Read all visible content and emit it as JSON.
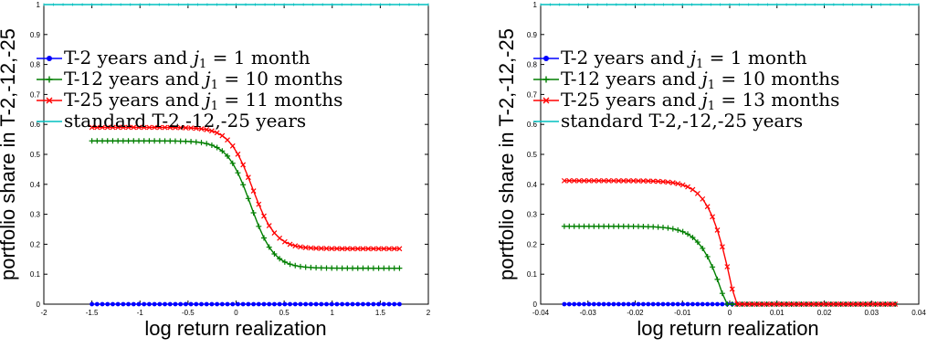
{
  "colors": {
    "blue": "#0000ff",
    "green": "#007f00",
    "red": "#ff0000",
    "cyan": "#00bfbf",
    "axis": "#000000"
  },
  "chart_data": [
    {
      "type": "line",
      "title": "",
      "xlabel": "log return realization",
      "ylabel": "portfolio share in T-2,-12,-25",
      "xlim": [
        -2,
        2
      ],
      "ylim": [
        0,
        1
      ],
      "xticks": [
        "-2",
        "-1.5",
        "-1",
        "-0.5",
        "0",
        "0.5",
        "1",
        "1.5",
        "2"
      ],
      "yticks": [
        "0",
        "0.1",
        "0.2",
        "0.3",
        "0.4",
        "0.5",
        "0.6",
        "0.7",
        "0.8",
        "0.9",
        "1"
      ],
      "grid": false,
      "legend_position": "top-left",
      "series": [
        {
          "name": "T-2 years and j1 = 1 month",
          "legend_prefix": "T-2 years and ",
          "legend_math": "j",
          "legend_sub": "1",
          "legend_suffix": " = 1 month",
          "color": "#0000ff",
          "marker": "dot",
          "shape": "const",
          "params": {
            "value": 0.0
          },
          "x_range": [
            -1.5,
            1.7
          ]
        },
        {
          "name": "T-12 years and j1 = 10 months",
          "legend_prefix": "T-12 years and ",
          "legend_math": "j",
          "legend_sub": "1",
          "legend_suffix": " = 10 months",
          "color": "#007f00",
          "marker": "plus",
          "shape": "sigmoid",
          "params": {
            "high": 0.545,
            "low": 0.12,
            "center": 0.15,
            "scale": 0.12
          },
          "x_range": [
            -1.5,
            1.7
          ]
        },
        {
          "name": "T-25 years and j1 = 11 months",
          "legend_prefix": "T-25 years and ",
          "legend_math": "j",
          "legend_sub": "1",
          "legend_suffix": " = 11 months",
          "color": "#ff0000",
          "marker": "x",
          "shape": "sigmoid",
          "params": {
            "high": 0.59,
            "low": 0.185,
            "center": 0.17,
            "scale": 0.12
          },
          "x_range": [
            -1.5,
            1.7
          ]
        },
        {
          "name": "standard T-2,-12,-25 years",
          "legend_prefix": "standard T-2,-12,-25 years",
          "legend_math": "",
          "legend_sub": "",
          "legend_suffix": "",
          "color": "#00bfbf",
          "marker": "none",
          "shape": "const",
          "params": {
            "value": 1.0
          },
          "x_range": [
            -2,
            2
          ]
        }
      ]
    },
    {
      "type": "line",
      "title": "",
      "xlabel": "log return realization",
      "ylabel": "portfolio share in T-2,-12,-25",
      "xlim": [
        -0.04,
        0.04
      ],
      "ylim": [
        0,
        1
      ],
      "xticks": [
        "-0.04",
        "-0.03",
        "-0.02",
        "-0.01",
        "0",
        "0.01",
        "0.02",
        "0.03",
        "0.04"
      ],
      "yticks": [
        "0",
        "0.1",
        "0.2",
        "0.3",
        "0.4",
        "0.5",
        "0.6",
        "0.7",
        "0.8",
        "0.9",
        "1"
      ],
      "grid": false,
      "legend_position": "top-left",
      "series": [
        {
          "name": "T-2 years and j1 = 1 month",
          "legend_prefix": "T-2 years and ",
          "legend_math": "j",
          "legend_sub": "1",
          "legend_suffix": " = 1 month",
          "color": "#0000ff",
          "marker": "dot",
          "shape": "const",
          "params": {
            "value": 0.0
          },
          "x_range": [
            -0.035,
            0.035
          ]
        },
        {
          "name": "T-12 years and j1 = 10 months",
          "legend_prefix": "T-12 years and ",
          "legend_math": "j",
          "legend_sub": "1",
          "legend_suffix": " = 10 months",
          "color": "#007f00",
          "marker": "plus",
          "shape": "kink",
          "params": {
            "high": 0.26,
            "zero": -0.0008,
            "k": 0.0055
          },
          "x_range": [
            -0.035,
            0.035
          ]
        },
        {
          "name": "T-25 years and j1 = 13 months",
          "legend_prefix": "T-25 years and ",
          "legend_math": "j",
          "legend_sub": "1",
          "legend_suffix": " = 13 months",
          "color": "#ff0000",
          "marker": "x",
          "shape": "kink",
          "params": {
            "high": 0.412,
            "zero": 0.0012,
            "k": 0.0055
          },
          "x_range": [
            -0.035,
            0.035
          ]
        },
        {
          "name": "standard T-2,-12,-25 years",
          "legend_prefix": "standard T-2,-12,-25 years",
          "legend_math": "",
          "legend_sub": "",
          "legend_suffix": "",
          "color": "#00bfbf",
          "marker": "none",
          "shape": "const",
          "params": {
            "value": 1.0
          },
          "x_range": [
            -0.04,
            0.04
          ]
        }
      ]
    }
  ]
}
